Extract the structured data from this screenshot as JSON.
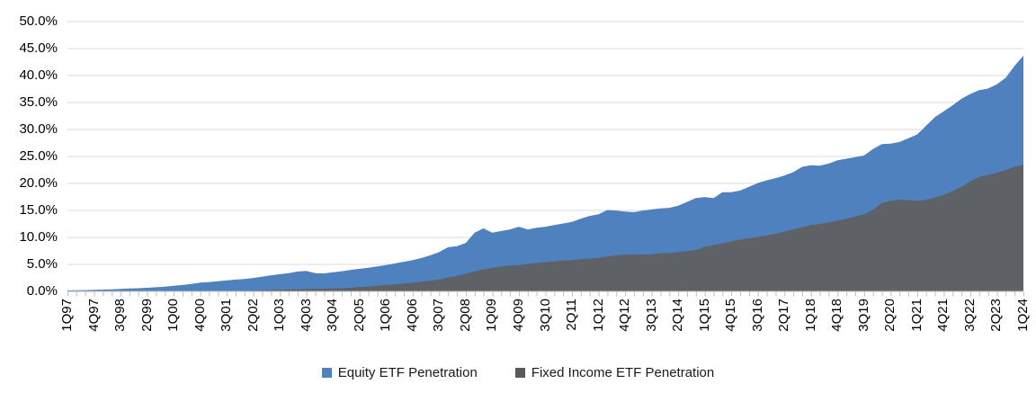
{
  "chart_data": {
    "type": "area",
    "title": "",
    "grid": "horizontal",
    "legend_position": "bottom",
    "y_axis": {
      "min": 0,
      "max": 50,
      "step": 5,
      "tick_labels_top_down": [
        "50.0%",
        "45.0%",
        "40.0%",
        "35.0%",
        "30.0%",
        "25.0%",
        "20.0%",
        "15.0%",
        "10.0%",
        "5.0%",
        "0.0%"
      ]
    },
    "x_axis": {
      "label_interval": 3,
      "visible_tick_labels": [
        "1Q97",
        "4Q97",
        "3Q98",
        "2Q99",
        "1Q00",
        "4Q00",
        "3Q01",
        "2Q02",
        "1Q03",
        "4Q03",
        "3Q04",
        "2Q05",
        "1Q06",
        "4Q06",
        "3Q07",
        "2Q08",
        "1Q09",
        "4Q09",
        "3Q10",
        "2Q11",
        "1Q12",
        "4Q12",
        "3Q13",
        "2Q14",
        "1Q15",
        "4Q15",
        "3Q16",
        "2Q17",
        "1Q18",
        "4Q18",
        "3Q19",
        "2Q20",
        "1Q21",
        "4Q21",
        "3Q22",
        "2Q23",
        "1Q24"
      ]
    },
    "categories": [
      "1Q97",
      "2Q97",
      "3Q97",
      "4Q97",
      "1Q98",
      "2Q98",
      "3Q98",
      "4Q98",
      "1Q99",
      "2Q99",
      "3Q99",
      "4Q99",
      "1Q00",
      "2Q00",
      "3Q00",
      "4Q00",
      "1Q01",
      "2Q01",
      "3Q01",
      "4Q01",
      "1Q02",
      "2Q02",
      "3Q02",
      "4Q02",
      "1Q03",
      "2Q03",
      "3Q03",
      "4Q03",
      "1Q04",
      "2Q04",
      "3Q04",
      "4Q04",
      "1Q05",
      "2Q05",
      "3Q05",
      "4Q05",
      "1Q06",
      "2Q06",
      "3Q06",
      "4Q06",
      "1Q07",
      "2Q07",
      "3Q07",
      "4Q07",
      "1Q08",
      "2Q08",
      "3Q08",
      "4Q08",
      "1Q09",
      "2Q09",
      "3Q09",
      "4Q09",
      "1Q10",
      "2Q10",
      "3Q10",
      "4Q10",
      "1Q11",
      "2Q11",
      "3Q11",
      "4Q11",
      "1Q12",
      "2Q12",
      "3Q12",
      "4Q12",
      "1Q13",
      "2Q13",
      "3Q13",
      "4Q13",
      "1Q14",
      "2Q14",
      "3Q14",
      "4Q14",
      "1Q15",
      "2Q15",
      "3Q15",
      "4Q15",
      "1Q16",
      "2Q16",
      "3Q16",
      "4Q16",
      "1Q17",
      "2Q17",
      "3Q17",
      "4Q17",
      "1Q18",
      "2Q18",
      "3Q18",
      "4Q18",
      "1Q19",
      "2Q19",
      "3Q19",
      "4Q19",
      "1Q20",
      "2Q20",
      "3Q20",
      "4Q20",
      "1Q21",
      "2Q21",
      "3Q21",
      "4Q21",
      "1Q22",
      "2Q22",
      "3Q22",
      "4Q22",
      "1Q23",
      "2Q23",
      "3Q23",
      "4Q23",
      "1Q24"
    ],
    "series": [
      {
        "name": "Equity ETF Penetration",
        "color": "#4E81BD",
        "values": [
          0.1,
          0.12,
          0.15,
          0.2,
          0.25,
          0.3,
          0.38,
          0.45,
          0.5,
          0.58,
          0.68,
          0.8,
          0.95,
          1.1,
          1.3,
          1.55,
          1.65,
          1.8,
          1.95,
          2.1,
          2.2,
          2.4,
          2.65,
          2.9,
          3.1,
          3.3,
          3.6,
          3.7,
          3.3,
          3.25,
          3.45,
          3.65,
          3.9,
          4.1,
          4.3,
          4.55,
          4.8,
          5.1,
          5.4,
          5.7,
          6.1,
          6.6,
          7.2,
          8.1,
          8.3,
          8.9,
          10.8,
          11.6,
          10.8,
          11.1,
          11.4,
          11.9,
          11.4,
          11.7,
          11.9,
          12.2,
          12.5,
          12.8,
          13.4,
          13.9,
          14.2,
          15.0,
          14.9,
          14.7,
          14.6,
          14.9,
          15.1,
          15.3,
          15.4,
          15.8,
          16.5,
          17.2,
          17.4,
          17.2,
          18.3,
          18.3,
          18.6,
          19.3,
          20.0,
          20.5,
          20.9,
          21.4,
          22.0,
          23.0,
          23.3,
          23.2,
          23.6,
          24.2,
          24.5,
          24.8,
          25.1,
          26.3,
          27.2,
          27.3,
          27.6,
          28.3,
          29.0,
          30.6,
          32.2,
          33.3,
          34.4,
          35.6,
          36.5,
          37.2,
          37.5,
          38.3,
          39.5,
          41.7,
          43.6
        ]
      },
      {
        "name": "Fixed Income ETF Penetration",
        "color": "#5E6166",
        "values": [
          0,
          0,
          0,
          0,
          0,
          0,
          0,
          0,
          0,
          0,
          0,
          0,
          0,
          0,
          0,
          0,
          0,
          0,
          0,
          0,
          0,
          0.05,
          0.1,
          0.15,
          0.2,
          0.25,
          0.3,
          0.35,
          0.4,
          0.42,
          0.45,
          0.5,
          0.6,
          0.7,
          0.8,
          0.95,
          1.1,
          1.2,
          1.35,
          1.5,
          1.7,
          1.9,
          2.1,
          2.5,
          2.8,
          3.2,
          3.6,
          4.0,
          4.3,
          4.5,
          4.7,
          4.8,
          5.0,
          5.2,
          5.3,
          5.5,
          5.6,
          5.7,
          5.9,
          6.0,
          6.1,
          6.4,
          6.6,
          6.7,
          6.8,
          6.7,
          6.8,
          7.0,
          7.0,
          7.2,
          7.4,
          7.6,
          8.2,
          8.5,
          8.8,
          9.2,
          9.5,
          9.8,
          10.0,
          10.3,
          10.6,
          11.0,
          11.4,
          11.8,
          12.2,
          12.4,
          12.7,
          13.0,
          13.4,
          13.8,
          14.2,
          15.0,
          16.3,
          16.7,
          16.9,
          16.8,
          16.7,
          16.9,
          17.3,
          17.8,
          18.5,
          19.3,
          20.3,
          21.1,
          21.5,
          21.9,
          22.4,
          23.0,
          23.4
        ]
      }
    ],
    "colors": {
      "equity": "#4E81BD",
      "fixed_income": "#5E6166",
      "gridline": "#D9D9D9",
      "axis": "#BFBFBF",
      "text": "#000000"
    }
  },
  "legend": {
    "equity_label": "Equity ETF Penetration",
    "fixed_income_label": "Fixed Income ETF Penetration"
  }
}
